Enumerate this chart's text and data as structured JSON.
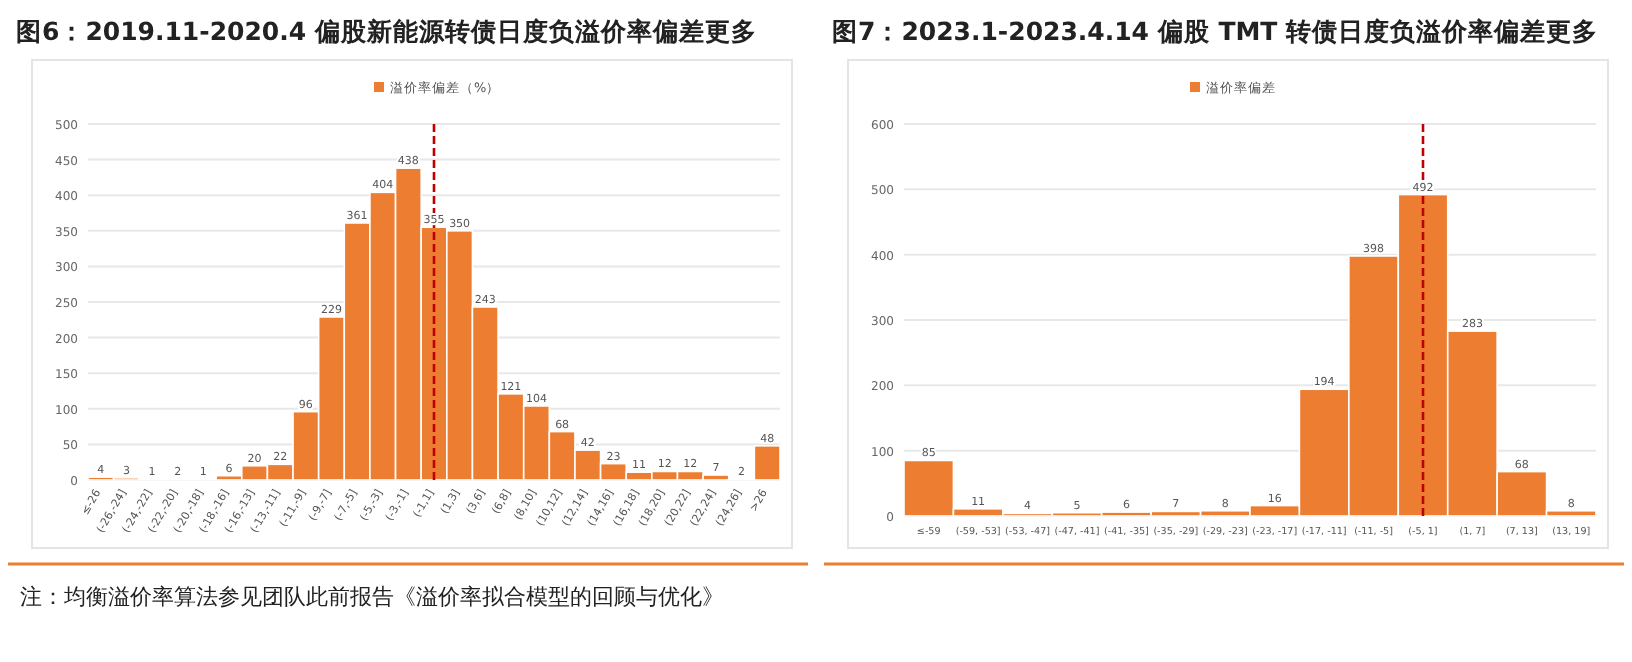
{
  "chart_data": [
    {
      "type": "bar",
      "title": "图6：2019.11-2020.4 偏股新能源转债日度负溢价率偏差更多",
      "categories": [
        "≤-26",
        "(-26,-24]",
        "(-24,-22]",
        "(-22,-20]",
        "(-20,-18]",
        "(-18,-16]",
        "(-16,-13]",
        "(-13,-11]",
        "(-11,-9]",
        "(-9,-7]",
        "(-7,-5]",
        "(-5,-3]",
        "(-3,-1]",
        "(-1,1]",
        "(1,3]",
        "(3,6]",
        "(6,8]",
        "(8,10]",
        "(10,12]",
        "(12,14]",
        "(14,16]",
        "(16,18]",
        "(18,20]",
        "(20,22]",
        "(22,24]",
        "(24,26]",
        ">26"
      ],
      "series": [
        {
          "name": "溢价率偏差（%）",
          "color": "#ed7d31",
          "values": [
            4,
            3,
            1,
            2,
            1,
            6,
            20,
            22,
            96,
            229,
            361,
            404,
            438,
            355,
            350,
            243,
            121,
            104,
            68,
            42,
            23,
            11,
            12,
            12,
            7,
            2,
            48
          ]
        }
      ],
      "ylim": [
        0,
        500
      ],
      "yticks": [
        0,
        50,
        100,
        150,
        200,
        250,
        300,
        350,
        400,
        450,
        500
      ],
      "grid": "y",
      "legend": "top",
      "data_labels": true,
      "ref_lines": [
        {
          "axis": "x",
          "value": "(-1,1]",
          "color": "#c00000",
          "line_style": "dashed"
        }
      ],
      "annotations": [
        "注：均衡溢价率算法参见团队此前报告《溢价率拟合模型的回顾与优化》"
      ]
    },
    {
      "type": "bar",
      "title": "图7：2023.1-2023.4.14 偏股 TMT 转债日度负溢价率偏差更多",
      "categories": [
        "≤-59",
        "(-59, -53]",
        "(-53, -47]",
        "(-47, -41]",
        "(-41, -35]",
        "(-35, -29]",
        "(-29, -23]",
        "(-23, -17]",
        "(-17, -11]",
        "(-11, -5]",
        "(-5, 1]",
        "(1, 7]",
        "(7, 13]",
        "(13, 19]"
      ],
      "series": [
        {
          "name": "溢价率偏差",
          "color": "#ed7d31",
          "values": [
            85,
            11,
            4,
            5,
            6,
            7,
            8,
            16,
            194,
            398,
            492,
            283,
            68,
            8
          ]
        }
      ],
      "ylim": [
        0,
        600
      ],
      "yticks": [
        0,
        100,
        200,
        300,
        400,
        500,
        600
      ],
      "grid": "y",
      "legend": "top",
      "data_labels": true,
      "ref_lines": [
        {
          "axis": "x",
          "value": "(-5, 1]",
          "color": "#c00000",
          "line_style": "dashed"
        }
      ]
    }
  ]
}
